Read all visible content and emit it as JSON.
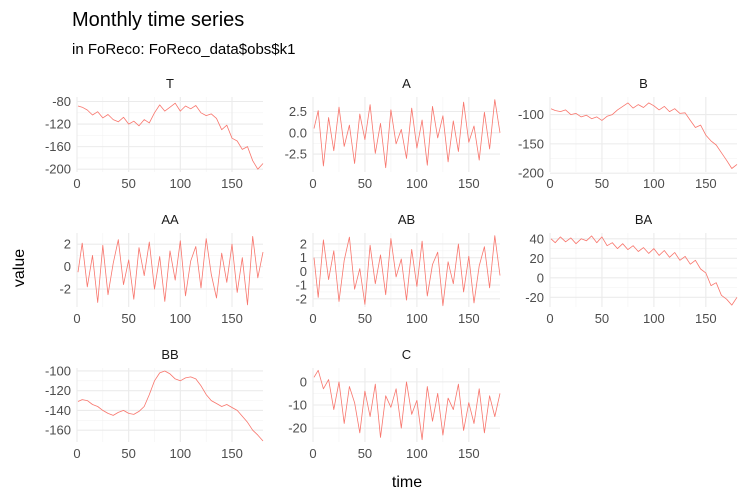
{
  "header": {
    "title": "Monthly time series",
    "subtitle": "in FoReco: FoReco_data$obs$k1"
  },
  "colors": {
    "series": "#F8766D"
  },
  "chart_data": {
    "type": "line",
    "facet": "wrap",
    "ncol": 3,
    "scales": "free_y",
    "grid": true,
    "xlabel": "time",
    "ylabel": "value",
    "xlim": [
      0,
      180
    ],
    "x_ticks": [
      0,
      50,
      100,
      150
    ],
    "panels": [
      {
        "name": "T",
        "ylim": [
          -205,
          -72
        ],
        "y_ticks": [
          -80,
          -120,
          -160,
          -200
        ],
        "y_tick_labels": [
          "-80",
          "-120",
          "-160",
          "-200"
        ],
        "x": [
          1,
          5,
          10,
          15,
          20,
          25,
          30,
          35,
          40,
          45,
          50,
          55,
          60,
          65,
          70,
          75,
          80,
          85,
          90,
          95,
          100,
          105,
          110,
          115,
          120,
          125,
          130,
          135,
          140,
          145,
          150,
          155,
          160,
          165,
          170,
          175,
          180
        ],
        "values": [
          -88,
          -90,
          -95,
          -104,
          -98,
          -109,
          -103,
          -112,
          -116,
          -108,
          -120,
          -115,
          -123,
          -112,
          -118,
          -100,
          -86,
          -97,
          -90,
          -83,
          -97,
          -88,
          -93,
          -87,
          -100,
          -105,
          -102,
          -110,
          -130,
          -122,
          -145,
          -150,
          -165,
          -160,
          -185,
          -200,
          -190
        ]
      },
      {
        "name": "A",
        "ylim": [
          -4.6,
          4.2
        ],
        "y_ticks": [
          2.5,
          0.0,
          -2.5
        ],
        "y_tick_labels": [
          "2.5",
          "0.0",
          "-2.5"
        ],
        "x": [
          1,
          5,
          10,
          15,
          20,
          25,
          30,
          35,
          40,
          45,
          50,
          55,
          60,
          65,
          70,
          75,
          80,
          85,
          90,
          95,
          100,
          105,
          110,
          115,
          120,
          125,
          130,
          135,
          140,
          145,
          150,
          155,
          160,
          165,
          170,
          175,
          180
        ],
        "values": [
          0.5,
          2.6,
          -3.9,
          1.8,
          -2.1,
          3.0,
          -1.6,
          0.9,
          -3.6,
          2.2,
          -0.8,
          3.3,
          -2.4,
          1.1,
          -4.1,
          2.7,
          -1.3,
          0.4,
          -3.0,
          2.9,
          -1.8,
          1.5,
          -3.8,
          3.1,
          -0.6,
          2.0,
          -3.4,
          1.4,
          -2.2,
          3.6,
          -1.1,
          0.8,
          -3.2,
          2.4,
          -1.9,
          3.9,
          0.0
        ]
      },
      {
        "name": "B",
        "ylim": [
          -198,
          -70
        ],
        "y_ticks": [
          -100,
          -150,
          -200
        ],
        "y_tick_labels": [
          "-100",
          "-150",
          "-200"
        ],
        "x": [
          1,
          5,
          10,
          15,
          20,
          25,
          30,
          35,
          40,
          45,
          50,
          55,
          60,
          65,
          70,
          75,
          80,
          85,
          90,
          95,
          100,
          105,
          110,
          115,
          120,
          125,
          130,
          135,
          140,
          145,
          150,
          155,
          160,
          165,
          170,
          175,
          180
        ],
        "values": [
          -90,
          -93,
          -95,
          -92,
          -100,
          -98,
          -104,
          -101,
          -107,
          -104,
          -110,
          -103,
          -100,
          -92,
          -86,
          -80,
          -89,
          -83,
          -88,
          -80,
          -85,
          -92,
          -86,
          -95,
          -90,
          -98,
          -97,
          -110,
          -122,
          -118,
          -135,
          -145,
          -152,
          -165,
          -178,
          -192,
          -185
        ]
      },
      {
        "name": "AA",
        "ylim": [
          -3.6,
          3.0
        ],
        "y_ticks": [
          2,
          0,
          -2
        ],
        "y_tick_labels": [
          "2",
          "0",
          "-2"
        ],
        "x": [
          1,
          5,
          10,
          15,
          20,
          25,
          30,
          35,
          40,
          45,
          50,
          55,
          60,
          65,
          70,
          75,
          80,
          85,
          90,
          95,
          100,
          105,
          110,
          115,
          120,
          125,
          130,
          135,
          140,
          145,
          150,
          155,
          160,
          165,
          170,
          175,
          180
        ],
        "values": [
          -0.5,
          2.1,
          -1.8,
          1.0,
          -3.2,
          1.9,
          -2.5,
          0.3,
          2.4,
          -1.6,
          0.6,
          -2.9,
          1.7,
          -0.8,
          2.2,
          -2.0,
          0.9,
          -3.1,
          1.4,
          -1.2,
          2.3,
          -2.6,
          0.5,
          1.8,
          -1.9,
          2.5,
          -0.7,
          -2.8,
          1.2,
          -1.4,
          2.0,
          -2.3,
          0.8,
          -3.4,
          2.7,
          -1.0,
          1.3
        ]
      },
      {
        "name": "AB",
        "ylim": [
          -2.6,
          2.8
        ],
        "y_ticks": [
          2,
          1,
          0,
          -1,
          -2
        ],
        "y_tick_labels": [
          "2",
          "1",
          "0",
          "-1",
          "-2"
        ],
        "x": [
          1,
          5,
          10,
          15,
          20,
          25,
          30,
          35,
          40,
          45,
          50,
          55,
          60,
          65,
          70,
          75,
          80,
          85,
          90,
          95,
          100,
          105,
          110,
          115,
          120,
          125,
          130,
          135,
          140,
          145,
          150,
          155,
          160,
          165,
          170,
          175,
          180
        ],
        "values": [
          1.0,
          -1.9,
          2.3,
          -0.6,
          1.5,
          -2.2,
          0.8,
          2.5,
          -1.3,
          0.2,
          -2.4,
          1.9,
          -0.9,
          1.2,
          -1.7,
          2.4,
          -0.4,
          0.9,
          -2.1,
          1.6,
          -1.1,
          2.2,
          -1.8,
          0.5,
          1.4,
          -2.5,
          0.7,
          -0.9,
          2.0,
          -1.5,
          1.1,
          -2.3,
          0.4,
          1.8,
          -1.2,
          2.6,
          -0.3
        ]
      },
      {
        "name": "BA",
        "ylim": [
          -30,
          46
        ],
        "y_ticks": [
          40,
          20,
          0,
          -20
        ],
        "y_tick_labels": [
          "40",
          "20",
          "0",
          "-20"
        ],
        "x": [
          1,
          5,
          10,
          15,
          20,
          25,
          30,
          35,
          40,
          45,
          50,
          55,
          60,
          65,
          70,
          75,
          80,
          85,
          90,
          95,
          100,
          105,
          110,
          115,
          120,
          125,
          130,
          135,
          140,
          145,
          150,
          155,
          160,
          165,
          170,
          175,
          180
        ],
        "values": [
          40,
          36,
          42,
          37,
          41,
          35,
          40,
          38,
          43,
          36,
          42,
          33,
          36,
          30,
          35,
          29,
          33,
          27,
          31,
          25,
          30,
          23,
          28,
          21,
          26,
          18,
          22,
          14,
          18,
          9,
          5,
          -8,
          -5,
          -18,
          -22,
          -28,
          -20
        ]
      },
      {
        "name": "BB",
        "ylim": [
          -172,
          -97
        ],
        "y_ticks": [
          -100,
          -120,
          -140,
          -160
        ],
        "y_tick_labels": [
          "-100",
          "-120",
          "-140",
          "-160"
        ],
        "x": [
          1,
          5,
          10,
          15,
          20,
          25,
          30,
          35,
          40,
          45,
          50,
          55,
          60,
          65,
          70,
          75,
          80,
          85,
          90,
          95,
          100,
          105,
          110,
          115,
          120,
          125,
          130,
          135,
          140,
          145,
          150,
          155,
          160,
          165,
          170,
          175,
          180
        ],
        "values": [
          -131,
          -129,
          -130,
          -134,
          -136,
          -140,
          -143,
          -145,
          -142,
          -140,
          -143,
          -144,
          -141,
          -136,
          -124,
          -110,
          -102,
          -100,
          -103,
          -108,
          -110,
          -107,
          -106,
          -108,
          -115,
          -124,
          -130,
          -133,
          -136,
          -134,
          -137,
          -140,
          -146,
          -152,
          -160,
          -165,
          -171
        ]
      },
      {
        "name": "C",
        "ylim": [
          -26,
          6
        ],
        "y_ticks": [
          0,
          -10,
          -20
        ],
        "y_tick_labels": [
          "0",
          "-10",
          "-20"
        ],
        "x": [
          1,
          5,
          10,
          15,
          20,
          25,
          30,
          35,
          40,
          45,
          50,
          55,
          60,
          65,
          70,
          75,
          80,
          85,
          90,
          95,
          100,
          105,
          110,
          115,
          120,
          125,
          130,
          135,
          140,
          145,
          150,
          155,
          160,
          165,
          170,
          175,
          180
        ],
        "values": [
          2,
          5,
          -3,
          1,
          -12,
          0,
          -18,
          -2,
          -9,
          -22,
          -4,
          -15,
          -1,
          -24,
          -6,
          -11,
          -3,
          -20,
          0,
          -14,
          -8,
          -25,
          -2,
          -17,
          -5,
          -23,
          -7,
          -12,
          -1,
          -21,
          -9,
          -18,
          -3,
          -22,
          -6,
          -15,
          -5
        ]
      }
    ]
  }
}
